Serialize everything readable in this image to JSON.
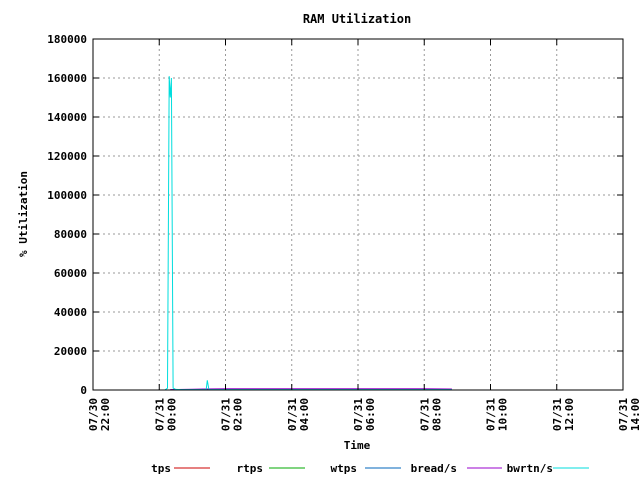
{
  "chart_data": {
    "type": "line",
    "title": "RAM Utilization",
    "xlabel": "Time",
    "ylabel": "% Utilization",
    "ylim": [
      0,
      180000
    ],
    "xlim": [
      "07/30 22:00",
      "07/31 14:00"
    ],
    "grid": true,
    "legend_position": "bottom",
    "y_ticks": [
      "0",
      "20000",
      "40000",
      "60000",
      "80000",
      "100000",
      "120000",
      "140000",
      "160000",
      "180000"
    ],
    "x_ticks": [
      {
        "line1": "07/30",
        "line2": "22:00"
      },
      {
        "line1": "07/31",
        "line2": "00:00"
      },
      {
        "line1": "07/31",
        "line2": "02:00"
      },
      {
        "line1": "07/31",
        "line2": "04:00"
      },
      {
        "line1": "07/31",
        "line2": "06:00"
      },
      {
        "line1": "07/31",
        "line2": "08:00"
      },
      {
        "line1": "07/31",
        "line2": "10:00"
      },
      {
        "line1": "07/31",
        "line2": "12:00"
      },
      {
        "line1": "07/31",
        "line2": "14:00"
      }
    ],
    "series": [
      {
        "name": "tps",
        "color": "#cc0000",
        "x": [
          "07/31 00:20",
          "07/31 00:30",
          "07/31 01:20",
          "07/31 03:00",
          "07/31 05:00",
          "07/31 07:00",
          "07/31 08:50"
        ],
        "y": [
          50,
          30,
          40,
          40,
          40,
          40,
          40
        ]
      },
      {
        "name": "rtps",
        "color": "#00aa00",
        "x": [
          "07/31 00:20",
          "07/31 01:20",
          "07/31 03:00",
          "07/31 05:00",
          "07/31 07:00",
          "07/31 08:50"
        ],
        "y": [
          20,
          20,
          20,
          20,
          20,
          20
        ]
      },
      {
        "name": "wtps",
        "color": "#0066bb",
        "x": [
          "07/31 00:20",
          "07/31 01:20",
          "07/31 03:00",
          "07/31 05:00",
          "07/31 07:00",
          "07/31 08:50"
        ],
        "y": [
          40,
          30,
          30,
          30,
          30,
          30
        ]
      },
      {
        "name": "bread/s",
        "color": "#9900cc",
        "x": [
          "07/31 00:20",
          "07/31 01:00",
          "07/31 01:20",
          "07/31 02:00",
          "07/31 03:00",
          "07/31 04:00",
          "07/31 05:00",
          "07/31 06:00",
          "07/31 07:00",
          "07/31 08:00",
          "07/31 08:50"
        ],
        "y": [
          200,
          400,
          500,
          600,
          600,
          600,
          600,
          600,
          600,
          600,
          500
        ]
      },
      {
        "name": "bwrtn/s",
        "color": "#00dddd",
        "x": [
          "07/31 00:10",
          "07/31 00:15",
          "07/31 00:18",
          "07/31 00:20",
          "07/31 00:22",
          "07/31 00:25",
          "07/31 00:30",
          "07/31 00:40",
          "07/31 01:00",
          "07/31 01:25",
          "07/31 01:27",
          "07/31 01:30",
          "07/31 03:00",
          "07/31 05:00",
          "07/31 07:00",
          "07/31 08:50"
        ],
        "y": [
          0,
          1000,
          161000,
          150000,
          160000,
          1000,
          300,
          200,
          200,
          200,
          5000,
          200,
          200,
          200,
          200,
          200
        ]
      }
    ]
  }
}
